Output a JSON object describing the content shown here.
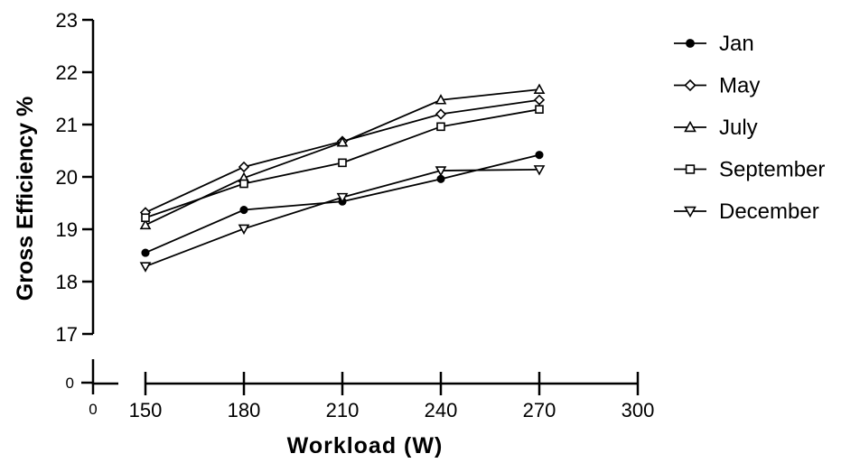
{
  "chart_data": {
    "type": "line",
    "xlabel": "Workload (W)",
    "ylabel": "Gross Efficiency %",
    "xlim": [
      150,
      300
    ],
    "ylim": [
      17,
      23
    ],
    "x_ticks": [
      "150",
      "180",
      "210",
      "240",
      "270",
      "300"
    ],
    "x_tick_values": [
      150,
      180,
      210,
      240,
      270,
      300
    ],
    "y_ticks": [
      "17",
      "18",
      "19",
      "20",
      "21",
      "22",
      "23"
    ],
    "y_tick_values": [
      17,
      18,
      19,
      20,
      21,
      22,
      23
    ],
    "broken_axis_zero_x": "0",
    "broken_axis_zero_y": "0",
    "legend_position": "right",
    "x": [
      150,
      180,
      210,
      240,
      270
    ],
    "series": [
      {
        "name": "Jan",
        "marker": "circle-filled",
        "values": [
          18.55,
          19.37,
          19.53,
          19.96,
          20.42
        ]
      },
      {
        "name": "May",
        "marker": "diamond-open",
        "values": [
          19.32,
          20.19,
          20.68,
          21.2,
          21.47
        ]
      },
      {
        "name": "July",
        "marker": "triangle-up-open",
        "values": [
          19.08,
          19.98,
          20.66,
          21.47,
          21.67
        ]
      },
      {
        "name": "September",
        "marker": "square-open",
        "values": [
          19.22,
          19.87,
          20.27,
          20.96,
          21.29
        ]
      },
      {
        "name": "December",
        "marker": "triangle-down-open",
        "values": [
          18.29,
          19.01,
          19.61,
          20.12,
          20.14
        ]
      }
    ]
  }
}
